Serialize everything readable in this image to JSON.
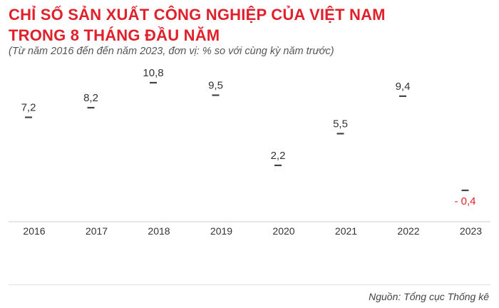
{
  "title_line1": "CHỈ SỐ SẢN XUẤT CÔNG NGHIỆP CỦA VIỆT NAM",
  "title_line2": "TRONG 8 THÁNG ĐẦU NĂM",
  "subtitle": "(Từ năm 2016 đến đến năm 2023, đơn vị: % so với cùng kỳ năm trước)",
  "source": "Nguồn: Tổng cục Thống kê",
  "colors": {
    "title": "#e0202a",
    "marker": "#444444",
    "negative": "#e0202a",
    "text": "#333333"
  },
  "chart_data": {
    "type": "scatter",
    "categories": [
      "2016",
      "2017",
      "2018",
      "2019",
      "2020",
      "2021",
      "2022",
      "2023"
    ],
    "values": [
      7.2,
      8.2,
      10.8,
      9.5,
      2.2,
      5.5,
      9.4,
      -0.4
    ],
    "value_labels": [
      "7,2",
      "8,2",
      "10,8",
      "9,5",
      "2,2",
      "5,5",
      "9,4",
      "- 0,4"
    ],
    "title": "CHỈ SỐ SẢN XUẤT CÔNG NGHIỆP CỦA VIỆT NAM TRONG 8 THÁNG ĐẦU NĂM",
    "xlabel": "",
    "ylabel": "",
    "ylim": [
      -0.4,
      10.8
    ],
    "grid": false,
    "legend": "none"
  }
}
